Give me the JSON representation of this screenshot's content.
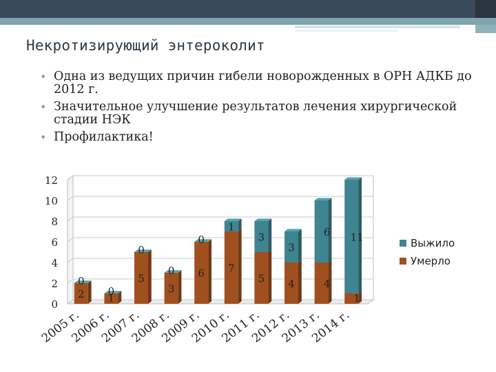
{
  "slide": {
    "title": "Некротизирующий энтероколит",
    "bullets": [
      "Одна из ведущих причин гибели новорожденных в ОРН АДКБ до 2012 г.",
      "Значительное улучшение результатов лечения хирургической стадии НЭК",
      "Профилактика!"
    ]
  },
  "chart_data": {
    "type": "bar",
    "stacked": true,
    "categories": [
      "2005 г.",
      "2006 г.",
      "2007 г.",
      "2008 г.",
      "2009 г.",
      "2010 г.",
      "2011 г.",
      "2012 г.",
      "2013 г.",
      "2014 г."
    ],
    "series": [
      {
        "name": "Умерло",
        "values": [
          2,
          1,
          5,
          3,
          6,
          7,
          5,
          4,
          4,
          1
        ],
        "color": "#a0501e"
      },
      {
        "name": "Выжило",
        "values": [
          0,
          0,
          0,
          0,
          0,
          1,
          3,
          3,
          6,
          11
        ],
        "color": "#3f8490"
      }
    ],
    "y_ticks": [
      "0",
      "2",
      "4",
      "6",
      "8",
      "10",
      "12"
    ],
    "ylim": [
      0,
      12
    ],
    "legend_position": "right",
    "grid": true
  }
}
